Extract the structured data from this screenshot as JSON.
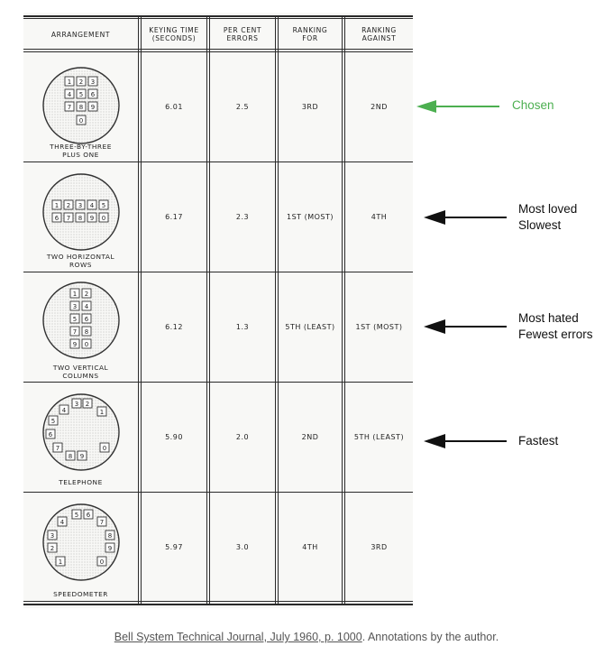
{
  "table": {
    "headers": [
      "ARRANGEMENT",
      "KEYING TIME\n(SECONDS)",
      "PER CENT\nERRORS",
      "RANKING\nFOR",
      "RANKING\nAGAINST"
    ],
    "rows": [
      {
        "label": "THREE-BY-THREE\nPLUS ONE",
        "time": "6.01",
        "errors": "2.5",
        "rank_for": "3RD",
        "rank_against": "2ND"
      },
      {
        "label": "TWO HORIZONTAL\nROWS",
        "time": "6.17",
        "errors": "2.3",
        "rank_for": "1ST (MOST)",
        "rank_against": "4TH"
      },
      {
        "label": "TWO VERTICAL\nCOLUMNS",
        "time": "6.12",
        "errors": "1.3",
        "rank_for": "5TH (LEAST)",
        "rank_against": "1ST (MOST)"
      },
      {
        "label": "TELEPHONE",
        "time": "5.90",
        "errors": "2.0",
        "rank_for": "2ND",
        "rank_against": "5TH (LEAST)"
      },
      {
        "label": "SPEEDOMETER",
        "time": "5.97",
        "errors": "3.0",
        "rank_for": "4TH",
        "rank_against": "3RD"
      }
    ]
  },
  "annotations": [
    {
      "text": "Chosen",
      "color": "#4caf50"
    },
    {
      "text": "Most loved\nSlowest",
      "color": "#111111"
    },
    {
      "text": "Most hated\nFewest errors",
      "color": "#111111"
    },
    {
      "text": "Fastest",
      "color": "#111111"
    }
  ],
  "caption": {
    "link_text": "Bell System Technical Journal, July 1960, p. 1000",
    "rest": ". Annotations by the author."
  }
}
